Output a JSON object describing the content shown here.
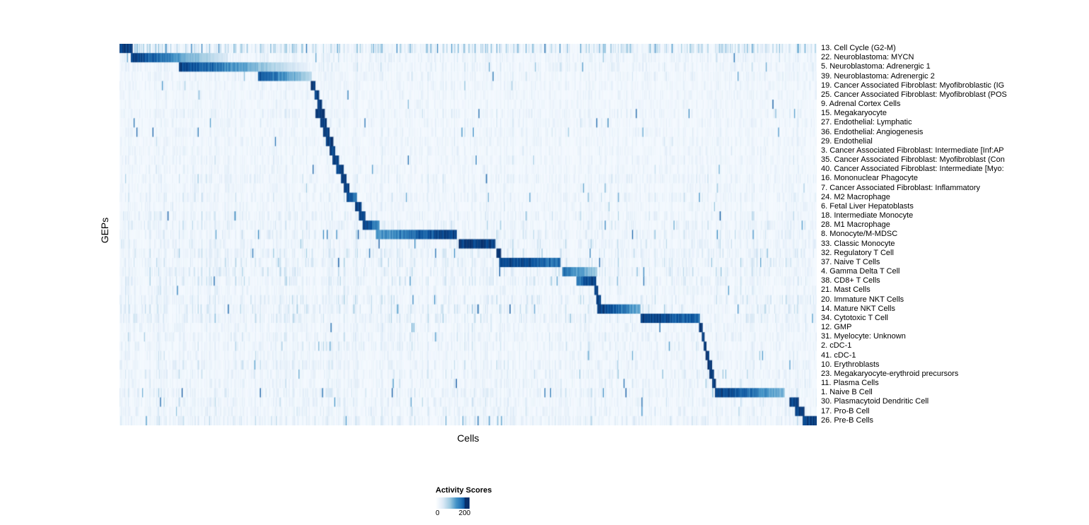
{
  "chart_data": {
    "type": "heatmap",
    "title": "",
    "xlabel": "Cells",
    "ylabel": "GEPs",
    "colormap": "Blues",
    "color_low": "#f7fbff",
    "color_high": "#08306b",
    "legend": {
      "title": "Activity Scores",
      "ticks": [
        "0",
        "200"
      ],
      "range": [
        0,
        200
      ]
    },
    "rows": [
      {
        "label": "13. Cell Cycle (G2-M)",
        "block": [
          0.0,
          0.018
        ],
        "fade": 0.0,
        "peak": 1.0,
        "noise": 1.0
      },
      {
        "label": "22. Neuroblastoma: MYCN",
        "block": [
          0.016,
          0.155
        ],
        "fade": 0.8,
        "peak": 1.0,
        "noise": 0.4
      },
      {
        "label": "5. Neuroblastoma: Adrenergic 1",
        "block": [
          0.085,
          0.27
        ],
        "fade": 0.85,
        "peak": 1.0,
        "noise": 0.4
      },
      {
        "label": "39. Neuroblastoma: Adrenergic 2",
        "block": [
          0.198,
          0.275
        ],
        "fade": 0.6,
        "peak": 0.9,
        "noise": 0.35
      },
      {
        "label": "19. Cancer Associated Fibroblast: Myofibroblastic (IG",
        "block": [
          0.274,
          0.281
        ],
        "fade": 0.0,
        "peak": 1.0,
        "noise": 0.3
      },
      {
        "label": "25. Cancer Associated Fibroblast: Myofibroblast (POS",
        "block": [
          0.279,
          0.286
        ],
        "fade": 0.0,
        "peak": 1.0,
        "noise": 0.3
      },
      {
        "label": "9. Adrenal Cortex Cells",
        "block": [
          0.283,
          0.29
        ],
        "fade": 0.0,
        "peak": 1.0,
        "noise": 0.25
      },
      {
        "label": "15. Megakaryocyte",
        "block": [
          0.281,
          0.294
        ],
        "fade": 0.0,
        "peak": 1.0,
        "noise": 0.35
      },
      {
        "label": "27. Endothelial: Lymphatic",
        "block": [
          0.288,
          0.297
        ],
        "fade": 0.0,
        "peak": 1.0,
        "noise": 0.3
      },
      {
        "label": "36. Endothelial: Angiogenesis",
        "block": [
          0.292,
          0.301
        ],
        "fade": 0.0,
        "peak": 1.0,
        "noise": 0.3
      },
      {
        "label": "29. Endothelial",
        "block": [
          0.296,
          0.306
        ],
        "fade": 0.0,
        "peak": 1.0,
        "noise": 0.3
      },
      {
        "label": "3. Cancer Associated Fibroblast: Intermediate [Inf:AP",
        "block": [
          0.301,
          0.309
        ],
        "fade": 0.0,
        "peak": 1.0,
        "noise": 0.3
      },
      {
        "label": "35. Cancer Associated Fibroblast: Myofibroblast (Con",
        "block": [
          0.305,
          0.315
        ],
        "fade": 0.0,
        "peak": 1.0,
        "noise": 0.3
      },
      {
        "label": "40. Cancer Associated Fibroblast: Intermediate [Myo:",
        "block": [
          0.31,
          0.322
        ],
        "fade": 0.0,
        "peak": 1.0,
        "noise": 0.3
      },
      {
        "label": "16. Mononuclear Phagocyte",
        "block": [
          0.317,
          0.326
        ],
        "fade": 0.0,
        "peak": 1.0,
        "noise": 0.4
      },
      {
        "label": "7. Cancer Associated Fibroblast: Inflammatory",
        "block": [
          0.322,
          0.33
        ],
        "fade": 0.0,
        "peak": 1.0,
        "noise": 0.3
      },
      {
        "label": "24. M2 Macrophage",
        "block": [
          0.326,
          0.341
        ],
        "fade": 0.3,
        "peak": 1.0,
        "noise": 0.4
      },
      {
        "label": "6. Fetal Liver Hepatoblasts",
        "block": [
          0.338,
          0.347
        ],
        "fade": 0.0,
        "peak": 1.0,
        "noise": 0.3
      },
      {
        "label": "18. Intermediate Monocyte",
        "block": [
          0.343,
          0.353
        ],
        "fade": 0.0,
        "peak": 1.0,
        "noise": 0.4
      },
      {
        "label": "28. M1 Macrophage",
        "block": [
          0.349,
          0.373
        ],
        "fade": 0.4,
        "peak": 1.0,
        "noise": 0.45
      },
      {
        "label": "8. Monocyte/M-MDSC",
        "block": [
          0.368,
          0.484
        ],
        "fade": -0.4,
        "peak": 1.0,
        "noise": 0.45
      },
      {
        "label": "33. Classic Monocyte",
        "block": [
          0.486,
          0.539
        ],
        "fade": 0.0,
        "peak": 1.0,
        "noise": 0.45
      },
      {
        "label": "32. Regulatory T Cell",
        "block": [
          0.54,
          0.547
        ],
        "fade": 0.0,
        "peak": 1.0,
        "noise": 0.5
      },
      {
        "label": "37. Naive T Cells",
        "block": [
          0.544,
          0.633
        ],
        "fade": 0.25,
        "peak": 1.0,
        "noise": 0.5
      },
      {
        "label": "4. Gamma Delta T Cell",
        "block": [
          0.635,
          0.686
        ],
        "fade": 0.5,
        "peak": 0.8,
        "noise": 0.5
      },
      {
        "label": "38. CD8+ T Cells",
        "block": [
          0.655,
          0.684
        ],
        "fade": -0.3,
        "peak": 1.0,
        "noise": 0.5
      },
      {
        "label": "21. Mast Cells",
        "block": [
          0.682,
          0.687
        ],
        "fade": 0.0,
        "peak": 1.0,
        "noise": 0.35
      },
      {
        "label": "20. Immature NKT Cells",
        "block": [
          0.684,
          0.691
        ],
        "fade": 0.0,
        "peak": 1.0,
        "noise": 0.5
      },
      {
        "label": "14. Mature NKT Cells",
        "block": [
          0.686,
          0.747
        ],
        "fade": 0.45,
        "peak": 1.0,
        "noise": 0.55
      },
      {
        "label": "34. Cytotoxic T Cell",
        "block": [
          0.747,
          0.833
        ],
        "fade": 0.25,
        "peak": 1.0,
        "noise": 0.5
      },
      {
        "label": "12. GMP",
        "block": [
          0.832,
          0.837
        ],
        "fade": 0.0,
        "peak": 1.0,
        "noise": 0.35
      },
      {
        "label": "31. Myelocyte: Unknown",
        "block": [
          0.835,
          0.84
        ],
        "fade": 0.0,
        "peak": 1.0,
        "noise": 0.4
      },
      {
        "label": "2. cDC-1",
        "block": [
          0.838,
          0.843
        ],
        "fade": 0.0,
        "peak": 1.0,
        "noise": 0.4
      },
      {
        "label": "41. cDC-1",
        "block": [
          0.841,
          0.846
        ],
        "fade": 0.0,
        "peak": 1.0,
        "noise": 0.35
      },
      {
        "label": "10. Erythroblasts",
        "block": [
          0.844,
          0.85
        ],
        "fade": 0.0,
        "peak": 1.0,
        "noise": 0.4
      },
      {
        "label": "23. Megakaryocyte-erythroid precursors",
        "block": [
          0.847,
          0.853
        ],
        "fade": 0.0,
        "peak": 1.0,
        "noise": 0.4
      },
      {
        "label": "11. Plasma Cells",
        "block": [
          0.851,
          0.856
        ],
        "fade": 0.0,
        "peak": 1.0,
        "noise": 0.35
      },
      {
        "label": "1. Naive B Cell",
        "block": [
          0.855,
          0.954
        ],
        "fade": 0.5,
        "peak": 1.0,
        "noise": 0.45
      },
      {
        "label": "30. Plasmacytoid Dendritic Cell",
        "block": [
          0.962,
          0.975
        ],
        "fade": 0.0,
        "peak": 1.0,
        "noise": 0.4
      },
      {
        "label": "17. Pro-B Cell",
        "block": [
          0.97,
          0.983
        ],
        "fade": 0.0,
        "peak": 1.0,
        "noise": 0.4
      },
      {
        "label": "26. Pre-B Cells",
        "block": [
          0.981,
          1.0
        ],
        "fade": 0.0,
        "peak": 1.0,
        "noise": 0.45
      }
    ]
  }
}
